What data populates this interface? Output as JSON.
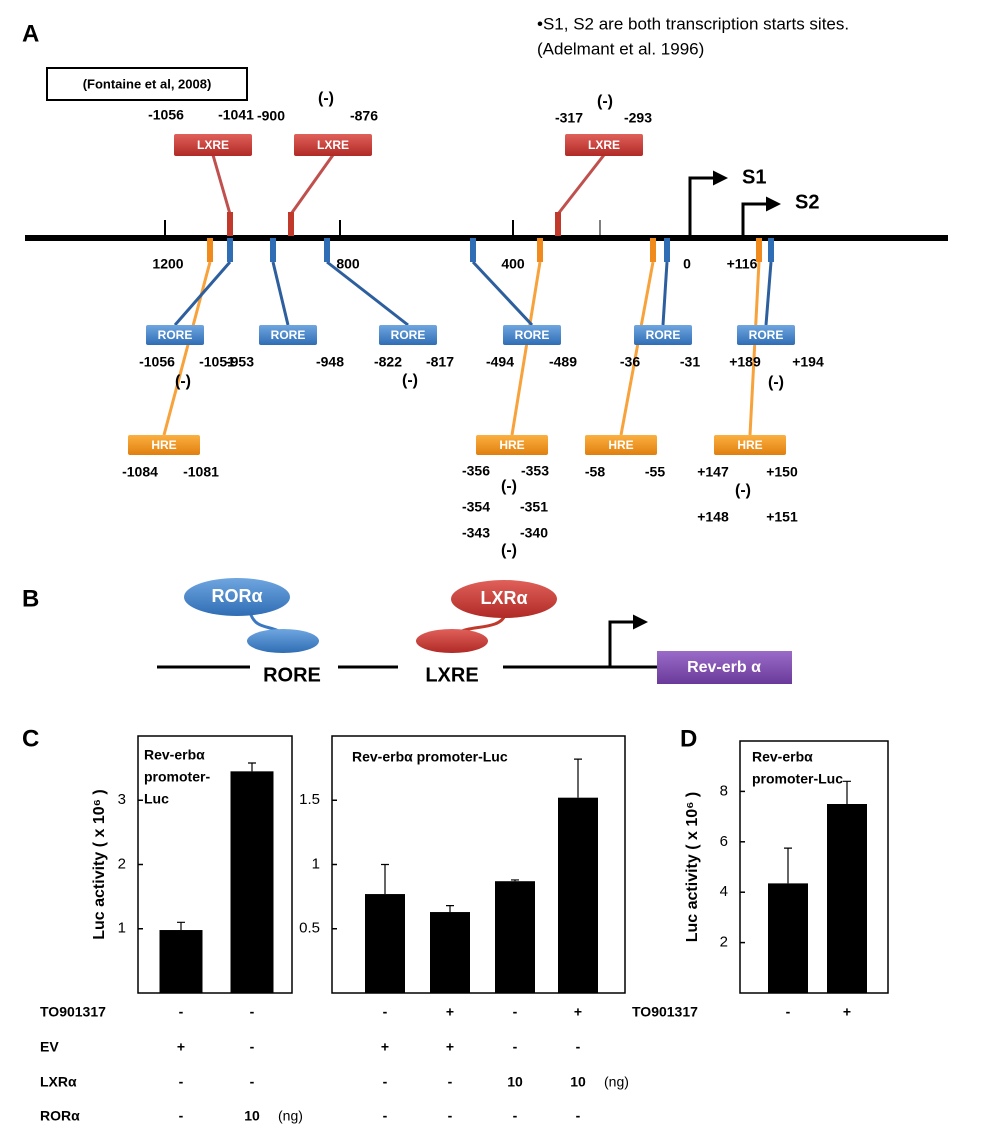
{
  "panels": {
    "a": "A",
    "b": "B",
    "c": "C",
    "d": "D"
  },
  "diagram_a": {
    "note": [
      "•S1, S2 are both transcription starts sites.",
      "(Adelmant et al. 1996)"
    ],
    "citation": "(Fontaine et al, 2008)",
    "scale_labels": [
      "1200",
      "800",
      "400",
      "0",
      "+116"
    ],
    "tss": [
      "S1",
      "S2"
    ],
    "lxre": [
      {
        "label": "LXRE",
        "positions": [
          "-1056",
          "-1041"
        ]
      },
      {
        "label": "LXRE",
        "positions": [
          "-900",
          "-876"
        ],
        "strand": "(-)"
      },
      {
        "label": "LXRE",
        "positions": [
          "-317",
          "-293"
        ],
        "strand": "(-)"
      }
    ],
    "rore": [
      {
        "label": "RORE",
        "positions": [
          "-1056",
          "-1051"
        ],
        "strand": "(-)"
      },
      {
        "label": "RORE",
        "positions": [
          "-953",
          "-948"
        ]
      },
      {
        "label": "RORE",
        "positions": [
          "-822",
          "-817"
        ],
        "strand": "(-)"
      },
      {
        "label": "RORE",
        "positions": [
          "-494",
          "-489"
        ]
      },
      {
        "label": "RORE",
        "positions": [
          "-36",
          "-31"
        ]
      },
      {
        "label": "RORE",
        "positions": [
          "+189",
          "+194"
        ],
        "strand": "(-)"
      }
    ],
    "hre": [
      {
        "label": "HRE",
        "positions": [
          "-1084",
          "-1081"
        ]
      },
      {
        "label": "HRE",
        "positions": [
          "-356",
          "-353",
          "-354",
          "-351",
          "-343",
          "-340"
        ],
        "strands": [
          "(-)",
          "(-)"
        ]
      },
      {
        "label": "HRE",
        "positions": [
          "-58",
          "-55"
        ]
      },
      {
        "label": "HRE",
        "positions": [
          "+147",
          "+150",
          "+148",
          "+151"
        ],
        "strands": [
          "(-)"
        ]
      }
    ]
  },
  "diagram_b": {
    "factors": [
      "RORα",
      "LXRα"
    ],
    "elements": [
      "RORE",
      "LXRE"
    ],
    "gene": "Rev-erb α"
  },
  "condition_names": [
    "TO901317",
    "EV",
    "LXRα",
    "RORα"
  ],
  "chart_data": [
    {
      "type": "bar",
      "title_lines": [
        "Rev-erbα",
        "promoter-",
        "Luc"
      ],
      "ylabel": "Luc activity ( x 10⁶ )",
      "values": [
        0.98,
        3.45
      ],
      "errors": [
        0.12,
        0.13
      ],
      "color": "#000000",
      "ylim": [
        0,
        4
      ],
      "yticks": [
        1,
        2,
        3
      ],
      "conditions": [
        {
          "values": [
            "-",
            "-"
          ]
        },
        {
          "values": [
            "+",
            "-"
          ]
        },
        {
          "values": [
            "-",
            "-"
          ]
        },
        {
          "values": [
            "-",
            "10"
          ],
          "unit": "(ng)"
        }
      ]
    },
    {
      "type": "bar",
      "title_lines": [
        "Rev-erbα  promoter-Luc"
      ],
      "values": [
        0.77,
        0.63,
        0.87,
        1.52
      ],
      "errors": [
        0.23,
        0.05,
        0.01,
        0.3
      ],
      "color": "#000000",
      "ylim": [
        0,
        2
      ],
      "yticks": [
        0.5,
        1,
        1.5
      ],
      "conditions": [
        {
          "values": [
            "-",
            "+",
            "-",
            "+"
          ]
        },
        {
          "values": [
            "+",
            "+",
            "-",
            "-"
          ]
        },
        {
          "values": [
            "-",
            "-",
            "10",
            "10"
          ],
          "unit": "(ng)"
        },
        {
          "values": [
            "-",
            "-",
            "-",
            "-"
          ]
        }
      ]
    },
    {
      "type": "bar",
      "title_lines": [
        "Rev-erbα",
        "promoter-Luc"
      ],
      "ylabel": "Luc activity ( x 10⁶ )",
      "values": [
        4.35,
        7.5
      ],
      "errors": [
        1.4,
        0.9
      ],
      "color": "#000000",
      "ylim": [
        0,
        10
      ],
      "yticks": [
        2,
        4,
        6,
        8
      ],
      "condition_name": "TO901317",
      "conditions": [
        {
          "values": [
            "-",
            "+"
          ]
        }
      ]
    }
  ]
}
